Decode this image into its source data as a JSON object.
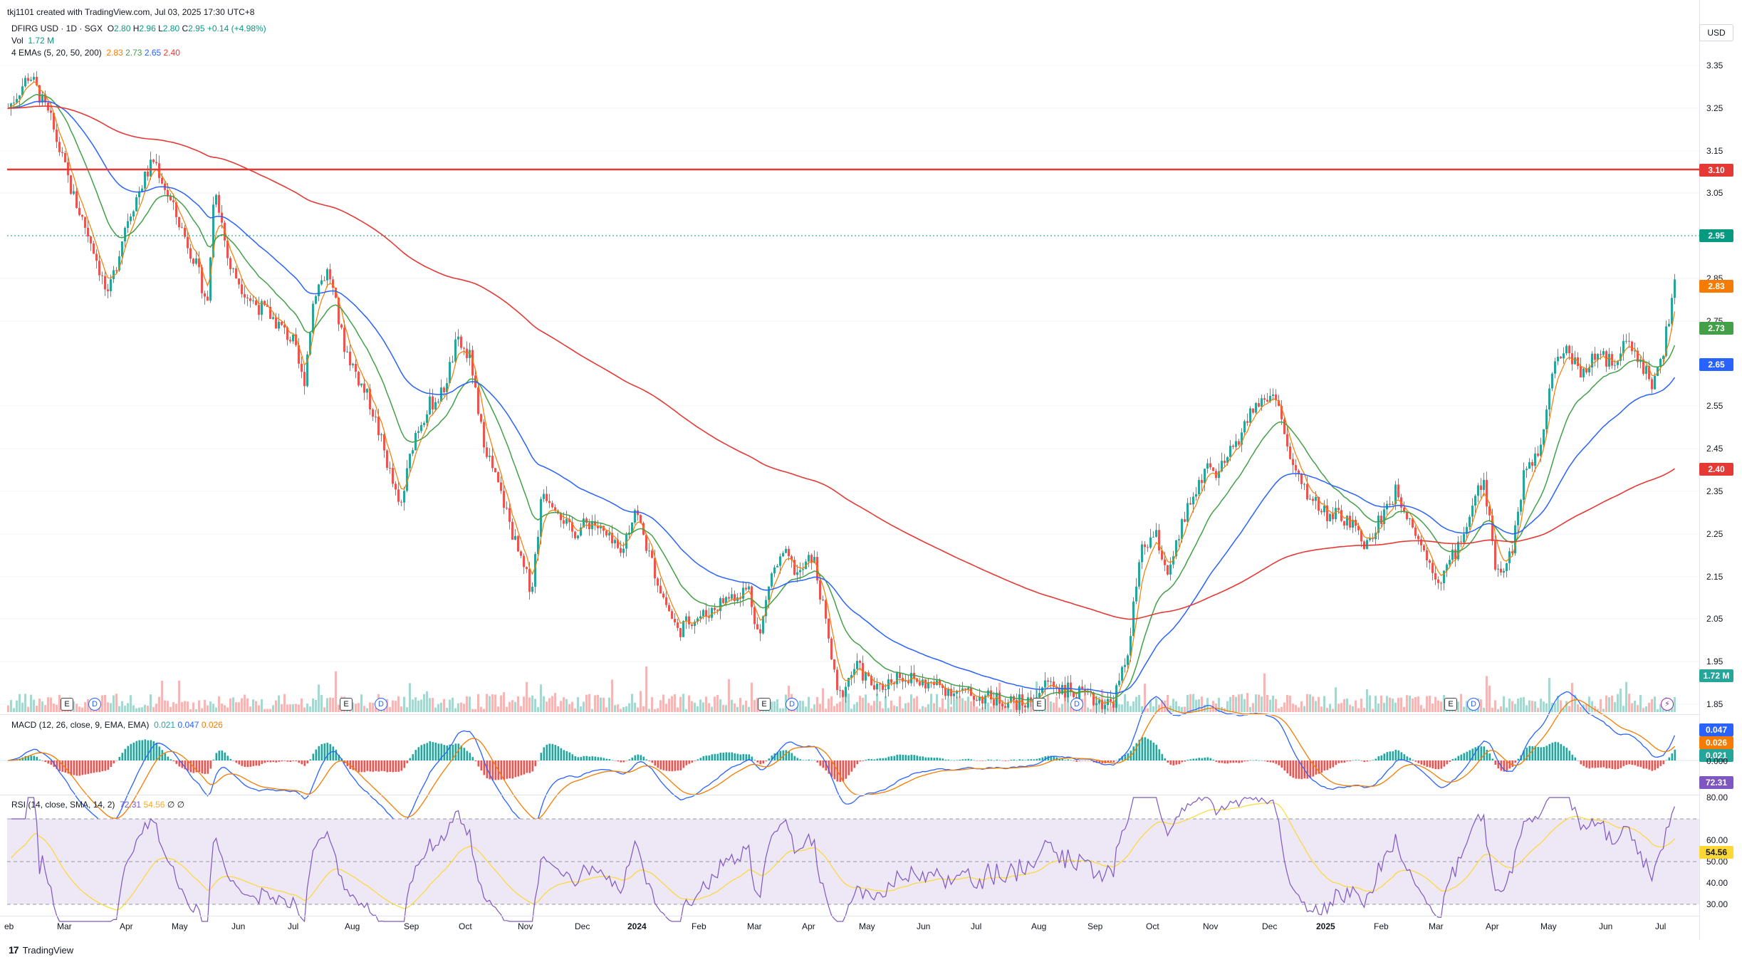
{
  "topbar": {
    "text": "tkj1101 created with TradingView.com, Jul 03, 2025 17:30 UTC+8"
  },
  "symbol": {
    "name": "DFIRG USD · 1D · SGX",
    "open_label": "O",
    "open": "2.80",
    "high_label": "H",
    "high": "2.96",
    "low_label": "L",
    "low": "2.80",
    "close_label": "C",
    "close": "2.95",
    "change": "+0.14 (+4.98%)"
  },
  "volume_legend": {
    "label": "Vol",
    "value": "1.72 M"
  },
  "ema_legend": {
    "label": "4 EMAs (5, 20, 50, 200)",
    "values": [
      "2.83",
      "2.73",
      "2.65",
      "2.40"
    ]
  },
  "macd_legend": {
    "label": "MACD (12, 26, close, 9, EMA, EMA)",
    "values": [
      "0.021",
      "0.047",
      "0.026"
    ]
  },
  "rsi_legend": {
    "label": "RSI (14, close, SMA, 14, 2)",
    "values": [
      "72.31",
      "54.56",
      "∅",
      "∅"
    ]
  },
  "price_axis": {
    "currency": "USD",
    "ticks": [
      "3.35",
      "3.25",
      "3.15",
      "3.05",
      "2.85",
      "2.75",
      "2.55",
      "2.45",
      "2.35",
      "2.25",
      "2.15",
      "2.05",
      "1.95",
      "1.85"
    ]
  },
  "price_labels": {
    "resistance": "3.10",
    "last": "2.95",
    "ema5": "2.83",
    "ema20": "2.73",
    "ema50": "2.65",
    "ema200": "2.40",
    "volume": "1.72 M"
  },
  "macd_axis": {
    "labels": [
      "0.047",
      "0.026",
      "0.021"
    ],
    "zero": "0.000"
  },
  "rsi_axis": {
    "ticks": [
      "80.00",
      "60.00",
      "50.00",
      "40.00",
      "30.00"
    ],
    "labels": [
      "72.31",
      "54.56"
    ]
  },
  "time_axis": [
    "eb",
    "Mar",
    "Apr",
    "May",
    "Jun",
    "Jul",
    "Aug",
    "Sep",
    "Oct",
    "Nov",
    "Dec",
    "2024",
    "Feb",
    "Mar",
    "Apr",
    "May",
    "Jun",
    "Jul",
    "Aug",
    "Sep",
    "Oct",
    "Nov",
    "Dec",
    "2025",
    "Feb",
    "Mar",
    "Apr",
    "May",
    "Jun",
    "Jul"
  ],
  "events": [
    "E",
    "D",
    "E",
    "D",
    "E",
    "D",
    "E",
    "D",
    "E",
    "D",
    "⚡"
  ],
  "brand": "TradingView",
  "colors": {
    "up": "#26a69a",
    "down": "#ef5350",
    "ema5": "#f57c00",
    "ema20": "#43a047",
    "ema50": "#2962ff",
    "ema200": "#e53935",
    "resistance": "#e53935",
    "macd": "#2962ff",
    "signal": "#f57c00",
    "rsi": "#7e57c2",
    "rsi_ma": "#fdd835"
  }
}
